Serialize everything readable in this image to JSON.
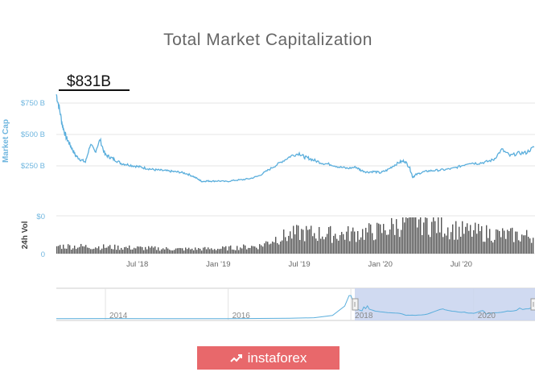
{
  "chart_data": {
    "type": "line",
    "title": "Total Market Capitalization",
    "annotation": "$831B",
    "ylabel": "Market Cap",
    "yunit": "USD billions",
    "ylim": [
      0,
      860
    ],
    "yticks": [
      0,
      250,
      500,
      750
    ],
    "ytick_labels": [
      "$0",
      "$250 B",
      "$500 B",
      "$750 B"
    ],
    "xrange": [
      2018.0,
      2020.95
    ],
    "xtick_positions": [
      2018.5,
      2019.0,
      2019.5,
      2020.0,
      2020.5
    ],
    "xtick_labels": [
      "Jul '18",
      "Jan '19",
      "Jul '19",
      "Jan '20",
      "Jul '20"
    ],
    "series": [
      {
        "name": "Market Cap",
        "x": [
          2018.0,
          2018.02,
          2018.04,
          2018.06,
          2018.08,
          2018.1,
          2018.12,
          2018.15,
          2018.18,
          2018.21,
          2018.24,
          2018.27,
          2018.3,
          2018.33,
          2018.36,
          2018.4,
          2018.44,
          2018.48,
          2018.52,
          2018.56,
          2018.6,
          2018.64,
          2018.68,
          2018.72,
          2018.76,
          2018.8,
          2018.84,
          2018.88,
          2018.9,
          2018.93,
          2018.96,
          2019.0,
          2019.05,
          2019.1,
          2019.15,
          2019.2,
          2019.25,
          2019.3,
          2019.35,
          2019.4,
          2019.45,
          2019.5,
          2019.53,
          2019.56,
          2019.6,
          2019.65,
          2019.7,
          2019.75,
          2019.8,
          2019.85,
          2019.88,
          2019.92,
          2019.96,
          2020.0,
          2020.04,
          2020.08,
          2020.12,
          2020.15,
          2020.18,
          2020.2,
          2020.22,
          2020.26,
          2020.3,
          2020.35,
          2020.4,
          2020.45,
          2020.5,
          2020.55,
          2020.6,
          2020.65,
          2020.7,
          2020.75,
          2020.8,
          2020.85,
          2020.9,
          2020.95
        ],
        "y": [
          820,
          700,
          560,
          480,
          430,
          380,
          330,
          300,
          280,
          420,
          360,
          460,
          340,
          320,
          300,
          270,
          260,
          250,
          240,
          230,
          220,
          215,
          210,
          205,
          200,
          190,
          170,
          140,
          125,
          130,
          128,
          130,
          125,
          135,
          140,
          150,
          170,
          210,
          250,
          290,
          330,
          350,
          320,
          310,
          290,
          270,
          260,
          240,
          230,
          240,
          215,
          200,
          205,
          195,
          215,
          250,
          280,
          290,
          240,
          160,
          180,
          200,
          210,
          215,
          220,
          230,
          250,
          275,
          270,
          280,
          300,
          380,
          330,
          350,
          355,
          400
        ]
      },
      {
        "name": "24h Vol",
        "x": [
          2018.0,
          2018.25,
          2018.5,
          2018.75,
          2019.0,
          2019.25,
          2019.35,
          2019.5,
          2019.75,
          2020.0,
          2020.1,
          2020.2,
          2020.3,
          2020.5,
          2020.75,
          2020.95
        ],
        "y": [
          20,
          18,
          15,
          12,
          13,
          20,
          40,
          55,
          50,
          60,
          75,
          95,
          80,
          60,
          50,
          45
        ]
      }
    ],
    "navigator": {
      "tick_labels": [
        "2014",
        "2016",
        "2018",
        "2020"
      ]
    }
  },
  "watermark": "instaforex",
  "colors": {
    "line": "#5aaedc",
    "volume": "#555555",
    "accent": "#e8686b",
    "navigator_fill": "#c8d3ef"
  }
}
